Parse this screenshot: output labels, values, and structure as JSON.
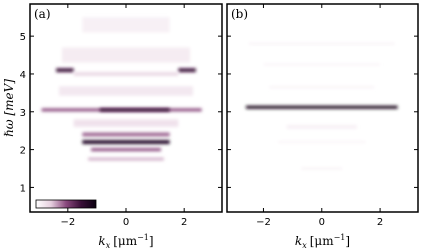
{
  "chart_data": [
    {
      "type": "heatmap",
      "panel_label": "(a)",
      "ylabel": "ℏω [meV]",
      "xlabel": {
        "symbol": "k",
        "sub": "x",
        "unit": "[μm",
        "sup": "−1",
        "end": "]"
      },
      "xlim": [
        -3.3,
        3.3
      ],
      "ylim": [
        0.35,
        5.85
      ],
      "xticks": [
        {
          "value": -2,
          "label": "−2"
        },
        0,
        2
      ],
      "yticks": [
        1,
        2,
        3,
        4,
        5
      ],
      "ytick_labels": true,
      "colormap": [
        "#ffffff",
        "#e6cfdf",
        "#8a4a7e",
        "#3a0f38",
        "#0a0010"
      ],
      "colorbar": true,
      "bands": [
        {
          "energy": 5.3,
          "k_min": -1.5,
          "k_max": 1.5,
          "intensity": 0.08,
          "spread": 0.4
        },
        {
          "energy": 4.5,
          "k_min": -2.2,
          "k_max": 2.2,
          "intensity": 0.1,
          "spread": 0.4
        },
        {
          "energy": 4.1,
          "k_min": -2.4,
          "k_max": -1.8,
          "intensity": 0.75,
          "spread": 0.1
        },
        {
          "energy": 4.1,
          "k_min": 1.8,
          "k_max": 2.4,
          "intensity": 0.75,
          "spread": 0.1
        },
        {
          "energy": 4.0,
          "k_min": -1.8,
          "k_max": 1.8,
          "intensity": 0.2,
          "spread": 0.1
        },
        {
          "energy": 3.55,
          "k_min": -2.3,
          "k_max": 2.3,
          "intensity": 0.12,
          "spread": 0.25
        },
        {
          "energy": 3.05,
          "k_min": -2.9,
          "k_max": 2.6,
          "intensity": 0.5,
          "spread": 0.08
        },
        {
          "energy": 3.05,
          "k_min": -0.9,
          "k_max": 1.5,
          "intensity": 0.8,
          "spread": 0.08
        },
        {
          "energy": 2.7,
          "k_min": -1.8,
          "k_max": 1.8,
          "intensity": 0.15,
          "spread": 0.2
        },
        {
          "energy": 2.4,
          "k_min": -1.5,
          "k_max": 1.5,
          "intensity": 0.45,
          "spread": 0.1
        },
        {
          "energy": 2.2,
          "k_min": -1.5,
          "k_max": 1.5,
          "intensity": 0.9,
          "spread": 0.1
        },
        {
          "energy": 2.0,
          "k_min": -1.2,
          "k_max": 1.2,
          "intensity": 0.5,
          "spread": 0.08
        },
        {
          "energy": 1.75,
          "k_min": -1.3,
          "k_max": 1.3,
          "intensity": 0.3,
          "spread": 0.08
        }
      ]
    },
    {
      "type": "heatmap",
      "panel_label": "(b)",
      "xlabel": {
        "symbol": "k",
        "sub": "x",
        "unit": "[μm",
        "sup": "−1",
        "end": "]"
      },
      "xlim": [
        -3.25,
        3.3
      ],
      "ylim": [
        0.35,
        5.85
      ],
      "xticks": [
        {
          "value": -2,
          "label": "−2"
        },
        0,
        2
      ],
      "yticks": [
        1,
        2,
        3,
        4,
        5
      ],
      "ytick_labels": false,
      "colormap": [
        "#ffffff",
        "#e6cfdf",
        "#8a4a7e",
        "#3a0f38",
        "#0a0010"
      ],
      "colorbar": false,
      "bands": [
        {
          "energy": 4.8,
          "k_min": -2.5,
          "k_max": 2.5,
          "intensity": 0.08,
          "spread": 0.05
        },
        {
          "energy": 4.25,
          "k_min": -2,
          "k_max": 2,
          "intensity": 0.06,
          "spread": 0.05
        },
        {
          "energy": 3.65,
          "k_min": -1.8,
          "k_max": 1.8,
          "intensity": 0.08,
          "spread": 0.05
        },
        {
          "energy": 3.12,
          "k_min": -2.6,
          "k_max": 2.6,
          "intensity": 0.95,
          "spread": 0.08
        },
        {
          "energy": 2.6,
          "k_min": -1.2,
          "k_max": 1.2,
          "intensity": 0.08,
          "spread": 0.1
        },
        {
          "energy": 2.2,
          "k_min": -1.5,
          "k_max": 1.5,
          "intensity": 0.06,
          "spread": 0.05
        },
        {
          "energy": 1.5,
          "k_min": -0.7,
          "k_max": 0.7,
          "intensity": 0.08,
          "spread": 0.05
        }
      ]
    }
  ]
}
